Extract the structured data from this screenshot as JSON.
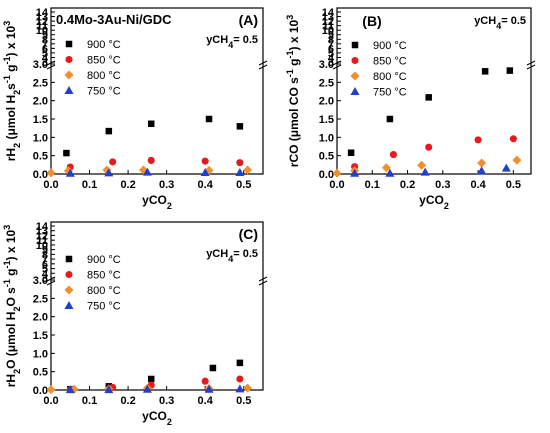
{
  "chart_data": [
    {
      "type": "scatter",
      "panel_label": "(A)",
      "title": "0.4Mo-3Au-Ni/GDC",
      "annotation": "yCH",
      "annotation_sub": "4",
      "annotation_tail": "= 0.5",
      "xlabel": "yCO",
      "xlabel_sub": "2",
      "ylabel_parts": [
        "rH",
        "2",
        " (μmol H",
        "2",
        "s",
        "-1",
        " g",
        "-1",
        ") x 10",
        "3"
      ],
      "xlim": [
        0.0,
        0.55
      ],
      "xticks": [
        "0.0",
        "0.1",
        "0.2",
        "0.3",
        "0.4",
        "0.5"
      ],
      "ylim": [
        0.0,
        3.0
      ],
      "yticks": [
        "0.0",
        "0.5",
        "1.0",
        "1.5",
        "2.0",
        "2.5",
        "3.0"
      ],
      "ybreak_ticks": [
        "3",
        "4",
        "5",
        "6",
        "7",
        "8",
        "9",
        "10",
        "11",
        "12",
        "13",
        "14"
      ],
      "legend_position": "upper-left",
      "series": [
        {
          "name": "900 °C",
          "marker": "square",
          "color": "#000000",
          "x": [
            0.04,
            0.15,
            0.26,
            0.41,
            0.49
          ],
          "y": [
            0.57,
            1.17,
            1.37,
            1.5,
            1.3
          ]
        },
        {
          "name": "850 °C",
          "marker": "circle",
          "color": "#e41a1c",
          "x": [
            0.05,
            0.16,
            0.26,
            0.4,
            0.49
          ],
          "y": [
            0.19,
            0.33,
            0.37,
            0.35,
            0.31
          ]
        },
        {
          "name": "800 °C",
          "marker": "diamond",
          "color": "#f28e2b",
          "x": [
            0.0,
            0.045,
            0.145,
            0.24,
            0.41,
            0.51
          ],
          "y": [
            0.03,
            0.09,
            0.11,
            0.11,
            0.1,
            0.11
          ]
        },
        {
          "name": "750 °C",
          "marker": "triangle",
          "color": "#1f3fcf",
          "x": [
            0.05,
            0.15,
            0.25,
            0.4,
            0.49
          ],
          "y": [
            0.02,
            0.03,
            0.05,
            0.04,
            0.04
          ]
        }
      ]
    },
    {
      "type": "scatter",
      "panel_label": "(B)",
      "title": "",
      "annotation": "yCH",
      "annotation_sub": "4",
      "annotation_tail": "= 0.5",
      "xlabel": "yCO",
      "xlabel_sub": "2",
      "ylabel_parts": [
        "rCO (μmol CO s",
        "-1",
        " g",
        "-1",
        ") x 10",
        "3"
      ],
      "xlim": [
        0.0,
        0.55
      ],
      "xticks": [
        "0.0",
        "0.1",
        "0.2",
        "0.3",
        "0.4",
        "0.5"
      ],
      "ylim": [
        0.0,
        3.0
      ],
      "yticks": [
        "0.0",
        "0.5",
        "1.0",
        "1.5",
        "2.0",
        "2.5",
        "3.0"
      ],
      "ybreak_ticks": [
        "3",
        "4",
        "5",
        "6",
        "7",
        "8",
        "9",
        "10",
        "11",
        "12",
        "13",
        "14"
      ],
      "legend_position": "upper-left",
      "series": [
        {
          "name": "900 °C",
          "marker": "square",
          "color": "#000000",
          "x": [
            0.04,
            0.15,
            0.26,
            0.42,
            0.49
          ],
          "y": [
            0.58,
            1.5,
            2.09,
            2.8,
            2.82
          ]
        },
        {
          "name": "850 °C",
          "marker": "circle",
          "color": "#e41a1c",
          "x": [
            0.05,
            0.16,
            0.26,
            0.4,
            0.5
          ],
          "y": [
            0.2,
            0.53,
            0.73,
            0.93,
            0.96
          ]
        },
        {
          "name": "800 °C",
          "marker": "diamond",
          "color": "#f28e2b",
          "x": [
            0.0,
            0.05,
            0.14,
            0.24,
            0.41,
            0.51
          ],
          "y": [
            0.02,
            0.09,
            0.17,
            0.24,
            0.3,
            0.38
          ]
        },
        {
          "name": "750 °C",
          "marker": "triangle",
          "color": "#1f3fcf",
          "x": [
            0.05,
            0.15,
            0.25,
            0.41,
            0.48
          ],
          "y": [
            0.02,
            0.02,
            0.05,
            0.09,
            0.16
          ]
        }
      ]
    },
    {
      "type": "scatter",
      "panel_label": "(C)",
      "title": "",
      "annotation": "yCH",
      "annotation_sub": "4",
      "annotation_tail": "= 0.5",
      "xlabel": "yCO",
      "xlabel_sub": "2",
      "ylabel_parts": [
        "rH",
        "2",
        "O (μmol H",
        "2",
        "O s",
        "-1",
        " g",
        "-1",
        ") x 10",
        "3"
      ],
      "xlim": [
        0.0,
        0.55
      ],
      "xticks": [
        "0.0",
        "0.1",
        "0.2",
        "0.3",
        "0.4",
        "0.5"
      ],
      "ylim": [
        0.0,
        3.0
      ],
      "yticks": [
        "0.0",
        "0.5",
        "1.0",
        "1.5",
        "2.0",
        "2.5",
        "3.0"
      ],
      "ybreak_ticks": [
        "3",
        "4",
        "5",
        "6",
        "7",
        "8",
        "9",
        "10",
        "11",
        "12",
        "13",
        "14"
      ],
      "legend_position": "upper-left",
      "series": [
        {
          "name": "900 °C",
          "marker": "square",
          "color": "#000000",
          "x": [
            0.05,
            0.15,
            0.26,
            0.42,
            0.49
          ],
          "y": [
            0.02,
            0.1,
            0.3,
            0.6,
            0.74
          ]
        },
        {
          "name": "850 °C",
          "marker": "circle",
          "color": "#e41a1c",
          "x": [
            0.05,
            0.16,
            0.26,
            0.4,
            0.49
          ],
          "y": [
            0.01,
            0.07,
            0.13,
            0.24,
            0.3
          ]
        },
        {
          "name": "800 °C",
          "marker": "diamond",
          "color": "#f28e2b",
          "x": [
            0.0,
            0.06,
            0.15,
            0.25,
            0.41,
            0.51
          ],
          "y": [
            0.01,
            0.02,
            0.03,
            0.05,
            0.04,
            0.05
          ]
        },
        {
          "name": "750 °C",
          "marker": "triangle",
          "color": "#1f3fcf",
          "x": [
            0.05,
            0.15,
            0.25,
            0.41,
            0.49
          ],
          "y": [
            0.01,
            0.01,
            0.02,
            0.02,
            0.03
          ]
        }
      ]
    }
  ]
}
